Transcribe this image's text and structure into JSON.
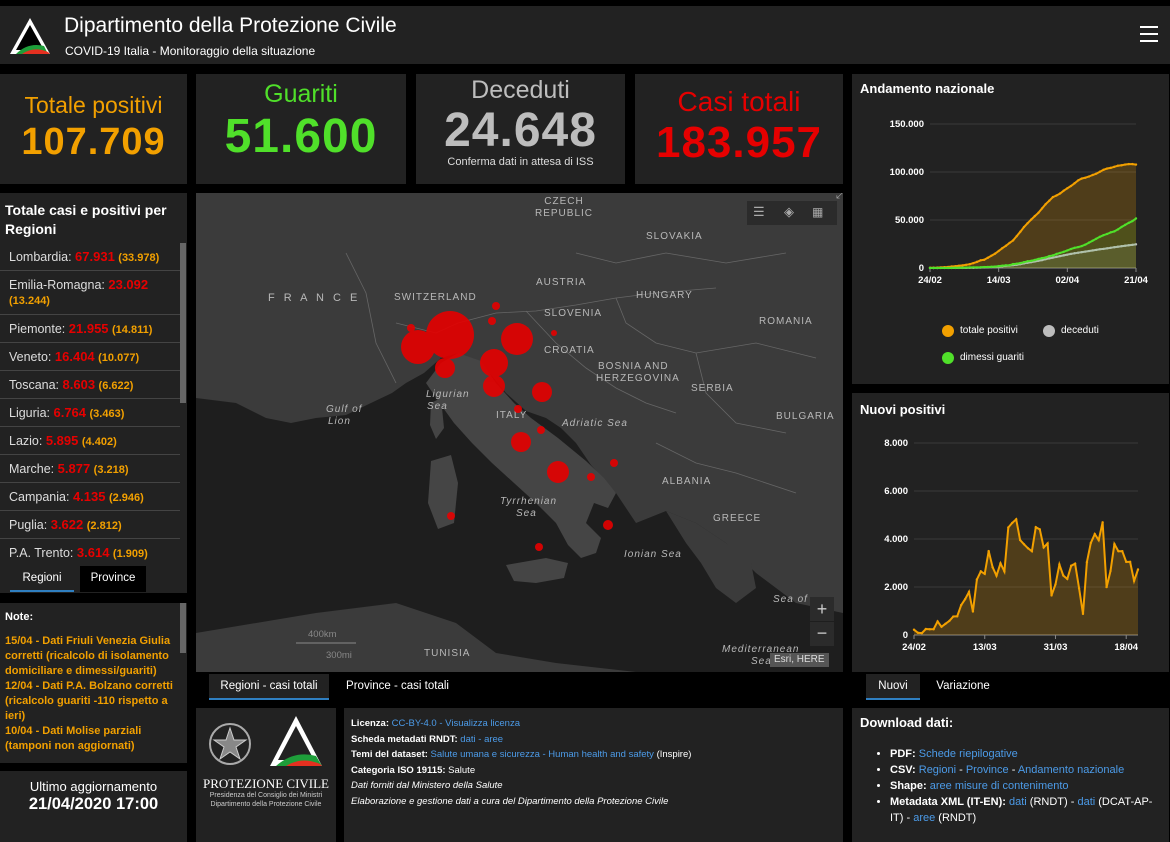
{
  "header": {
    "title": "Dipartimento della Protezione Civile",
    "subtitle": "COVID-19 Italia - Monitoraggio della situazione"
  },
  "stats": {
    "positivi": {
      "label": "Totale positivi",
      "value": "107.709",
      "color": "#f2a000"
    },
    "guariti": {
      "label": "Guariti",
      "value": "51.600",
      "color": "#50e02a"
    },
    "deceduti": {
      "label": "Deceduti",
      "value": "24.648",
      "note": "Conferma dati in attesa di ISS",
      "color": "#bdbdbd"
    },
    "casi": {
      "label": "Casi totali",
      "value": "183.957",
      "color": "#e60000"
    }
  },
  "regions": {
    "title": "Totale casi e positivi per Regioni",
    "items": [
      {
        "name": "Lombardia:",
        "cases": "67.931",
        "pos": "(33.978)"
      },
      {
        "name": "Emilia-Romagna:",
        "cases": "23.092",
        "pos": "(13.244)"
      },
      {
        "name": "Piemonte:",
        "cases": "21.955",
        "pos": "(14.811)"
      },
      {
        "name": "Veneto:",
        "cases": "16.404",
        "pos": "(10.077)"
      },
      {
        "name": "Toscana:",
        "cases": "8.603",
        "pos": "(6.622)"
      },
      {
        "name": "Liguria:",
        "cases": "6.764",
        "pos": "(3.463)"
      },
      {
        "name": "Lazio:",
        "cases": "5.895",
        "pos": "(4.402)"
      },
      {
        "name": "Marche:",
        "cases": "5.877",
        "pos": "(3.218)"
      },
      {
        "name": "Campania:",
        "cases": "4.135",
        "pos": "(2.946)"
      },
      {
        "name": "Puglia:",
        "cases": "3.622",
        "pos": "(2.812)"
      },
      {
        "name": "P.A. Trento:",
        "cases": "3.614",
        "pos": "(1.909)"
      }
    ],
    "tabs": [
      "Regioni",
      "Province"
    ]
  },
  "notes": {
    "title": "Note:",
    "lines": [
      "15/04 - Dati Friuli Venezia Giulia corretti (ricalcolo di isolamento domiciliare e dimessi/guariti)",
      "12/04 - Dati P.A. Bolzano corretti (ricalcolo guariti -110 rispetto a ieri)",
      "10/04 - Dati  Molise parziali (tamponi non aggiornati)"
    ]
  },
  "update": {
    "label": "Ultimo aggiornamento",
    "value": "21/04/2020 17:00"
  },
  "map": {
    "labels": {
      "czech": [
        "CZECH",
        "REPUBLIC"
      ],
      "slovakia": "SLOVAKIA",
      "austria": "AUSTRIA",
      "hungary": "HUNGARY",
      "france": "F R A N C E",
      "switzerland": "SWITZERLAND",
      "slovenia": "SLOVENIA",
      "romania": "ROMANIA",
      "croatia": "CROATIA",
      "bosnia": [
        "BOSNIA AND",
        "HERZEGOVINA"
      ],
      "serbia": "SERBIA",
      "italy": "ITALY",
      "bulgaria": "BULGARIA",
      "ligurian": [
        "Ligurian",
        "Sea"
      ],
      "lion": [
        "Gulf of",
        "Lion"
      ],
      "adriatic": "Adriatic Sea",
      "albania": "ALBANIA",
      "tyrrhenian": [
        "Tyrrhenian",
        "Sea"
      ],
      "greece": "GREECE",
      "ionian": "Ionian Sea",
      "creta": "Sea of",
      "tunisia": "TUNISIA",
      "mediterranean": [
        "Mediterranean",
        "Sea"
      ]
    },
    "scale_km": "400km",
    "scale_mi": "300mi",
    "attribution": "Esri, HERE",
    "tabs": [
      "Regioni - casi totali",
      "Province - casi totali"
    ]
  },
  "footer": {
    "logo_text": "PROTEZIONE CIVILE",
    "logo_sub": [
      "Presidenza del Consiglio dei Ministri",
      "Dipartimento della Protezione Civile"
    ],
    "licenza_label": "Licenza:",
    "licenza_link": "CC-BY-4.0",
    "licenza_sep": " - ",
    "licenza_link2": "Visualizza licenza",
    "scheda_label": "Scheda metadati RNDT:",
    "scheda_link1": "dati",
    "scheda_sep": " - ",
    "scheda_link2": "aree",
    "temi_label": "Temi del dataset:",
    "temi_link": "Salute umana e sicurezza - Human health and safety",
    "temi_tail": " (Inspire)",
    "iso_label": "Categoria ISO 19115:",
    "iso_value": " Salute",
    "fonti": "Dati forniti dal Ministero della Salute",
    "elaborazione": "Elaborazione e gestione dati a cura del Dipartimento della Protezione Civile"
  },
  "download": {
    "title": "Download dati:",
    "pdf_label": "PDF:",
    "pdf_link": "Schede riepilogative",
    "csv_label": "CSV:",
    "csv_link1": "Regioni",
    "csv_link2": "Province",
    "csv_link3": "Andamento nazionale",
    "csv_sep": " - ",
    "shape_label": "Shape:",
    "shape_link": "aree misure di contenimento",
    "xml_label": "Metadata XML (IT-EN):",
    "xml_link1": "dati",
    "xml_mid1": " (RNDT) - ",
    "xml_link2": "dati",
    "xml_mid2": " (DCAT-AP-IT) - ",
    "xml_link3": "aree",
    "xml_tail": " (RNDT)"
  },
  "chart_trend": {
    "title": "Andamento nazionale",
    "legend": [
      "totale positivi",
      "deceduti",
      "dimessi guariti"
    ]
  },
  "chart_new": {
    "title": "Nuovi positivi",
    "tabs": [
      "Nuovi",
      "Variazione"
    ]
  },
  "chart_data": [
    {
      "type": "line",
      "title": "Andamento nazionale",
      "x": [
        "24/02",
        "25/02",
        "26/02",
        "27/02",
        "28/02",
        "29/02",
        "01/03",
        "02/03",
        "03/03",
        "04/03",
        "05/03",
        "06/03",
        "07/03",
        "08/03",
        "09/03",
        "10/03",
        "11/03",
        "12/03",
        "13/03",
        "14/03",
        "15/03",
        "16/03",
        "17/03",
        "18/03",
        "19/03",
        "20/03",
        "21/03",
        "22/03",
        "23/03",
        "24/03",
        "25/03",
        "26/03",
        "27/03",
        "28/03",
        "29/03",
        "30/03",
        "31/03",
        "01/04",
        "02/04",
        "03/04",
        "04/04",
        "05/04",
        "06/04",
        "07/04",
        "08/04",
        "09/04",
        "10/04",
        "11/04",
        "12/04",
        "13/04",
        "14/04",
        "15/04",
        "16/04",
        "17/04",
        "18/04",
        "19/04",
        "20/04",
        "21/04"
      ],
      "xticks": [
        "24/02",
        "14/03",
        "02/04",
        "21/04"
      ],
      "ylim": [
        0,
        150000
      ],
      "yticks": [
        "0",
        "50.000",
        "100.000",
        "150.000"
      ],
      "series": [
        {
          "name": "totale positivi",
          "color": "#f2a000",
          "values": [
            221,
            311,
            385,
            588,
            821,
            1049,
            1577,
            1835,
            2263,
            2706,
            3296,
            3916,
            5061,
            6387,
            7985,
            8514,
            10590,
            12839,
            14955,
            17750,
            20603,
            23073,
            26062,
            28710,
            33190,
            37860,
            42681,
            46638,
            50418,
            54030,
            57521,
            62013,
            66414,
            70065,
            73880,
            75528,
            77635,
            80572,
            83049,
            85388,
            88274,
            91246,
            93187,
            94067,
            95262,
            96877,
            98273,
            100269,
            102253,
            103616,
            104291,
            105418,
            106607,
            106962,
            107771,
            108257,
            108237,
            107709
          ]
        },
        {
          "name": "deceduti",
          "color": "#bdbdbd",
          "values": [
            7,
            10,
            12,
            17,
            21,
            29,
            34,
            52,
            79,
            107,
            148,
            197,
            233,
            366,
            463,
            631,
            827,
            1016,
            1266,
            1441,
            1809,
            2158,
            2503,
            2978,
            3405,
            4032,
            4825,
            5476,
            6077,
            6820,
            7503,
            8165,
            9134,
            10023,
            10779,
            11591,
            12428,
            13155,
            13915,
            14681,
            15362,
            15887,
            16523,
            17127,
            17669,
            18279,
            18849,
            19468,
            19899,
            20465,
            21067,
            21645,
            22170,
            22745,
            23227,
            23660,
            24114,
            24648
          ]
        },
        {
          "name": "dimessi guariti",
          "color": "#50e02a",
          "values": [
            1,
            1,
            3,
            45,
            46,
            50,
            83,
            149,
            160,
            276,
            414,
            523,
            589,
            622,
            724,
            1004,
            1045,
            1258,
            1439,
            1966,
            2335,
            2749,
            2941,
            4025,
            4440,
            5129,
            6072,
            7024,
            7432,
            8326,
            9362,
            10361,
            10950,
            12384,
            13030,
            14620,
            15729,
            16847,
            18278,
            19758,
            20996,
            21815,
            22837,
            24392,
            26491,
            28470,
            30455,
            32534,
            34211,
            35435,
            37130,
            38092,
            40164,
            42727,
            44927,
            47055,
            48877,
            51600
          ]
        }
      ]
    },
    {
      "type": "area",
      "title": "Nuovi positivi",
      "x": [
        "24/02",
        "25/02",
        "26/02",
        "27/02",
        "28/02",
        "29/02",
        "01/03",
        "02/03",
        "03/03",
        "04/03",
        "05/03",
        "06/03",
        "07/03",
        "08/03",
        "09/03",
        "10/03",
        "11/03",
        "12/03",
        "13/03",
        "14/03",
        "15/03",
        "16/03",
        "17/03",
        "18/03",
        "19/03",
        "20/03",
        "21/03",
        "22/03",
        "23/03",
        "24/03",
        "25/03",
        "26/03",
        "27/03",
        "28/03",
        "29/03",
        "30/03",
        "31/03",
        "01/04",
        "02/04",
        "03/04",
        "04/04",
        "05/04",
        "06/04",
        "07/04",
        "08/04",
        "09/04",
        "10/04",
        "11/04",
        "12/04",
        "13/04",
        "14/04",
        "15/04",
        "16/04",
        "17/04",
        "18/04",
        "19/04",
        "20/04",
        "21/04"
      ],
      "xticks": [
        "24/02",
        "13/03",
        "31/03",
        "18/04"
      ],
      "ylim": [
        0,
        8000
      ],
      "yticks": [
        "0",
        "2.000",
        "4.000",
        "6.000",
        "8.000"
      ],
      "series": [
        {
          "name": "",
          "color": "#f2a000",
          "values": [
            221,
            93,
            78,
            250,
            238,
            240,
            566,
            342,
            466,
            587,
            769,
            778,
            1247,
            1492,
            1797,
            977,
            2313,
            2651,
            2547,
            3497,
            2823,
            2470,
            2989,
            2648,
            4480,
            4670,
            4821,
            3957,
            3780,
            3612,
            3491,
            4492,
            4401,
            3651,
            3815,
            1648,
            2107,
            2937,
            2477,
            2339,
            2886,
            2972,
            1941,
            880,
            3039,
            3836,
            4204,
            3951,
            4694,
            1996,
            2667,
            3786,
            3493,
            3491,
            3047,
            3047,
            2256,
            2729
          ]
        }
      ]
    }
  ]
}
